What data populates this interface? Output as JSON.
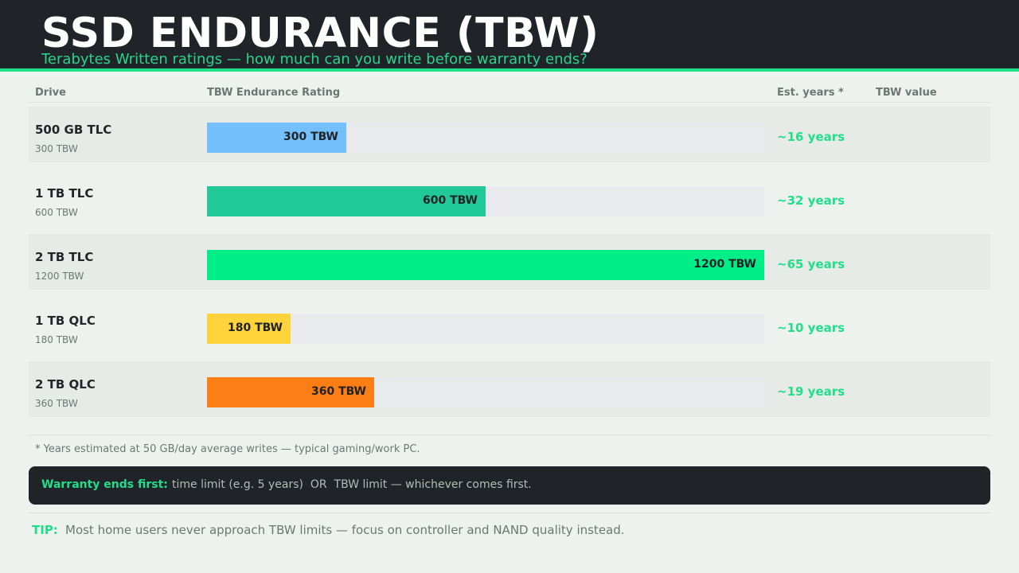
{
  "header": {
    "title": "SSD ENDURANCE (TBW)",
    "subtitle": "Terabytes Written ratings — how much can you write before warranty ends?"
  },
  "columns": {
    "drive": "Drive",
    "rating": "TBW Endurance Rating",
    "years": "Est. years *",
    "value": "TBW value"
  },
  "chart_data": {
    "type": "bar",
    "title": "SSD ENDURANCE (TBW)",
    "categories": [
      "500 GB TLC",
      "1 TB TLC",
      "2 TB TLC",
      "1 TB QLC",
      "2 TB QLC"
    ],
    "values": [
      300,
      600,
      1200,
      180,
      360
    ],
    "ylim": [
      0,
      1200
    ],
    "bar_labels": [
      "300 TBW",
      "600 TBW",
      "1200 TBW",
      "180 TBW",
      "360 TBW"
    ],
    "sub_labels": [
      "300 TBW",
      "600 TBW",
      "1200 TBW",
      "180 TBW",
      "360 TBW"
    ],
    "years": [
      "~16 years",
      "~32 years",
      "~65 years",
      "~10 years",
      "~19 years"
    ],
    "colors": [
      "#74c0fc",
      "#20c997",
      "#00ee88",
      "#ffd43b",
      "#fd7e14"
    ]
  },
  "footer": {
    "note": "* Years estimated at 50 GB/day average writes — typical gaming/work PC.",
    "warning_label": "Warranty ends first:",
    "warning_text": "time limit (e.g. 5 years)  OR  TBW limit — whichever comes first.",
    "tip_label": "TIP:",
    "tip_text": "Most home users never approach TBW limits — focus on controller and NAND quality instead."
  }
}
